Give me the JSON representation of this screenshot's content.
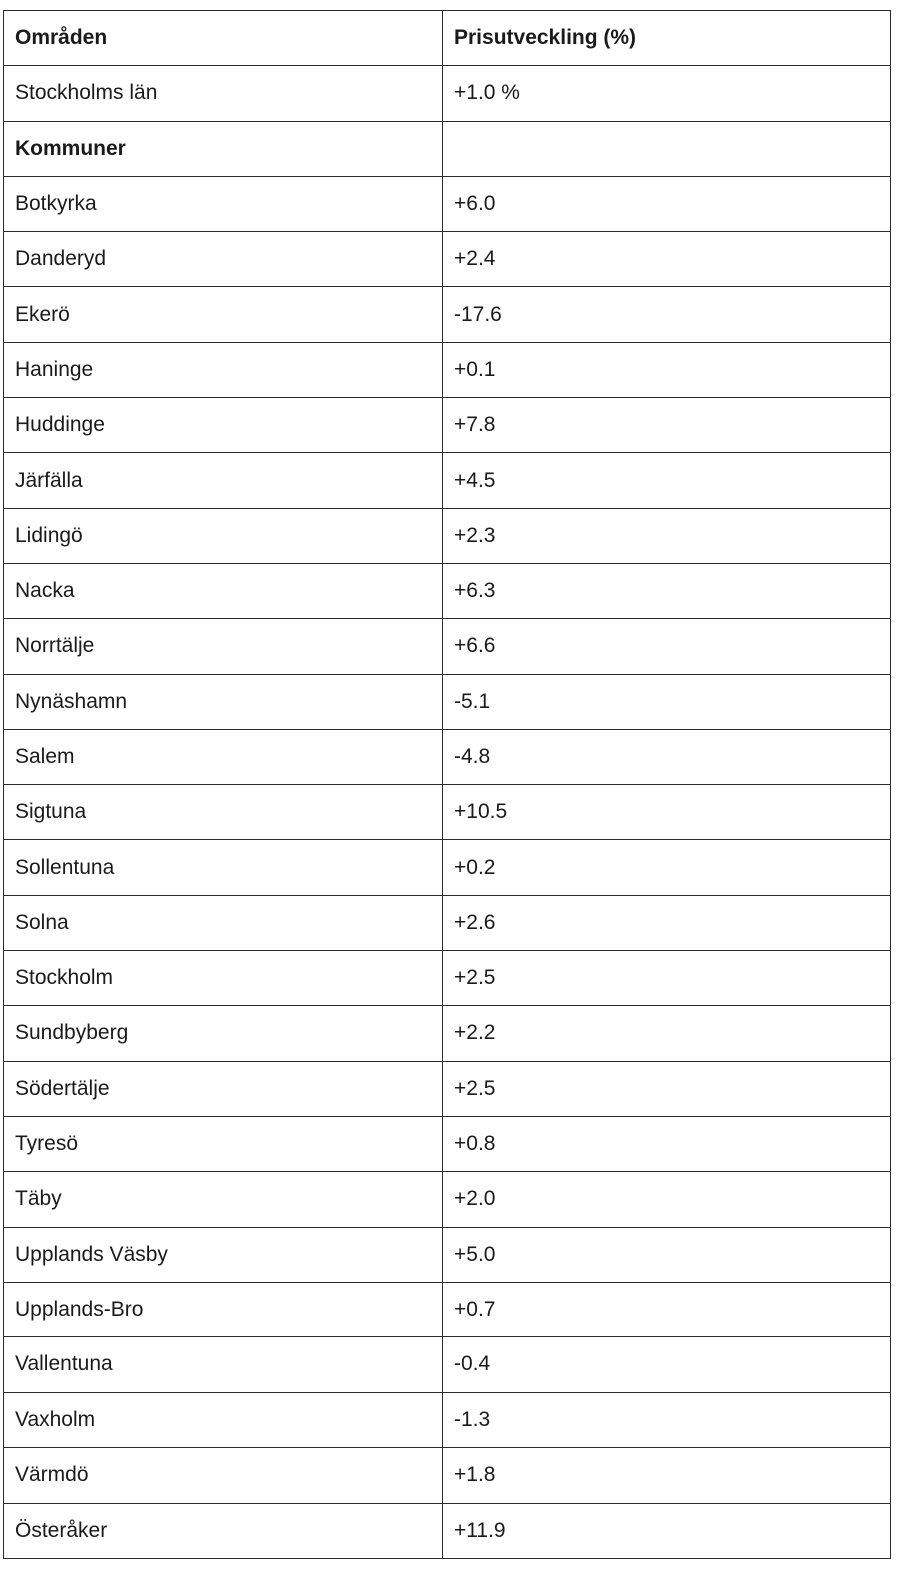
{
  "header": {
    "area": "Områden",
    "change": "Prisutveckling (%)"
  },
  "county": {
    "area": "Stockholms län",
    "change": "+1.0 %"
  },
  "section": {
    "label": "Kommuner",
    "change": ""
  },
  "municipalities_top": [
    {
      "area": "Botkyrka",
      "change": "+6.0"
    },
    {
      "area": "Danderyd",
      "change": "+2.4"
    },
    {
      "area": "Ekerö",
      "change": "-17.6"
    },
    {
      "area": "Haninge",
      "change": "+0.1"
    },
    {
      "area": "Huddinge",
      "change": "+7.8"
    },
    {
      "area": "Järfälla",
      "change": "+4.5"
    },
    {
      "area": "Lidingö",
      "change": "+2.3"
    },
    {
      "area": "Nacka",
      "change": "+6.3"
    },
    {
      "area": "Norrtälje",
      "change": "+6.6"
    },
    {
      "area": "Nynäshamn",
      "change": "-5.1"
    },
    {
      "area": "Salem",
      "change": "-4.8"
    },
    {
      "area": "Sigtuna",
      "change": "+10.5"
    },
    {
      "area": "Sollentuna",
      "change": "+0.2"
    },
    {
      "area": "Solna",
      "change": "+2.6"
    },
    {
      "area": "Stockholm",
      "change": "+2.5"
    },
    {
      "area": "Sundbyberg",
      "change": "+2.2"
    },
    {
      "area": "Södertälje",
      "change": "+2.5"
    },
    {
      "area": "Tyresö",
      "change": "+0.8"
    },
    {
      "area": "Täby",
      "change": "+2.0"
    },
    {
      "area": "Upplands Väsby",
      "change": "+5.0"
    },
    {
      "area": "Upplands-Bro",
      "change": "+0.7"
    }
  ],
  "municipalities_bottom": [
    {
      "area": "Vallentuna",
      "change": "-0.4"
    },
    {
      "area": "Vaxholm",
      "change": "-1.3"
    },
    {
      "area": "Värmdö",
      "change": "+1.8"
    },
    {
      "area": "Österåker",
      "change": "+11.9"
    }
  ]
}
